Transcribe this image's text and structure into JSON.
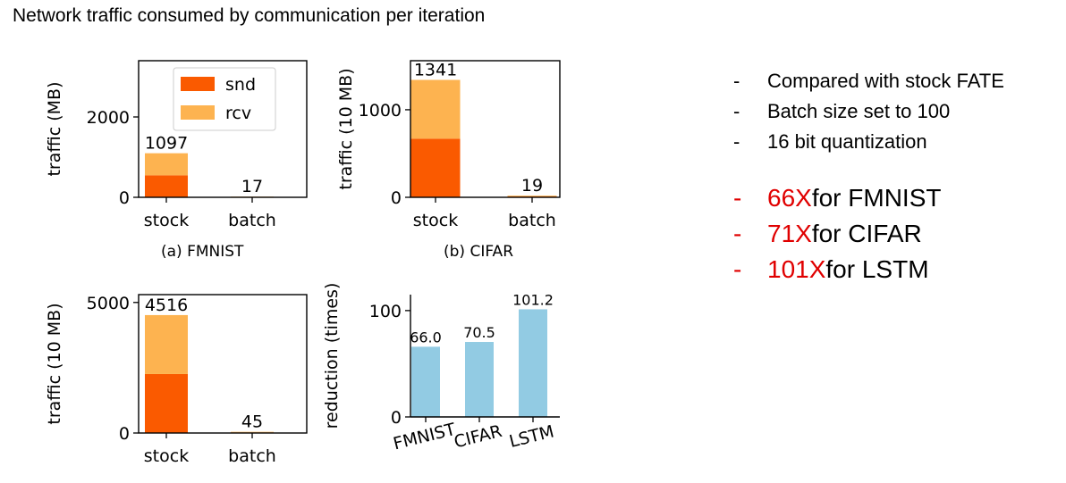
{
  "title": "Network traffic consumed by communication per iteration",
  "colors": {
    "snd": "#fa5a00",
    "rcv": "#fdb350",
    "reduction": "#92cbe3",
    "highlight": "#e00000"
  },
  "bullets": {
    "small": [
      {
        "dash": "-",
        "text": "Compared with stock FATE"
      },
      {
        "dash": "-",
        "text": "Batch size set to 100"
      },
      {
        "dash": "-",
        "text": "16 bit quantization"
      }
    ],
    "big": [
      {
        "dash": "-",
        "highlight": "66X",
        "text": " for FMNIST"
      },
      {
        "dash": "-",
        "highlight": "71X",
        "text": " for CIFAR"
      },
      {
        "dash": "-",
        "highlight": "101X",
        "text": " for LSTM"
      }
    ]
  },
  "chart_data": [
    {
      "type": "bar",
      "stacked": true,
      "caption": "(a) FMNIST",
      "ylabel": "traffic (MB)",
      "ylim": [
        0,
        3400
      ],
      "yticks": [
        0,
        2000
      ],
      "categories": [
        "stock",
        "batch"
      ],
      "series": [
        {
          "name": "snd",
          "values": [
            548,
            8.5
          ]
        },
        {
          "name": "rcv",
          "values": [
            549,
            8.5
          ]
        }
      ],
      "data_labels": [
        "1097",
        "17"
      ],
      "legend": {
        "position": "top-right",
        "entries": [
          "snd",
          "rcv"
        ]
      }
    },
    {
      "type": "bar",
      "stacked": true,
      "caption": "(b) CIFAR",
      "ylabel": "traffic (10 MB)",
      "ylim": [
        0,
        1560
      ],
      "yticks": [
        0,
        1000
      ],
      "categories": [
        "stock",
        "batch"
      ],
      "series": [
        {
          "name": "snd",
          "values": [
            670,
            9.5
          ]
        },
        {
          "name": "rcv",
          "values": [
            671,
            9.5
          ]
        }
      ],
      "data_labels": [
        "1341",
        "19"
      ]
    },
    {
      "type": "bar",
      "stacked": true,
      "caption": "",
      "ylabel": "traffic (10 MB)",
      "ylim": [
        0,
        5300
      ],
      "yticks": [
        0,
        5000
      ],
      "categories": [
        "stock",
        "batch"
      ],
      "series": [
        {
          "name": "snd",
          "values": [
            2258,
            22.5
          ]
        },
        {
          "name": "rcv",
          "values": [
            2258,
            22.5
          ]
        }
      ],
      "data_labels": [
        "4516",
        "45"
      ]
    },
    {
      "type": "bar",
      "caption": "",
      "ylabel": "reduction (times)",
      "ylim": [
        0,
        115
      ],
      "yticks": [
        0,
        100
      ],
      "categories": [
        "FMNIST",
        "CIFAR",
        "LSTM"
      ],
      "values": [
        66.0,
        70.5,
        101.2
      ],
      "data_labels": [
        "66.0",
        "70.5",
        "101.2"
      ]
    }
  ]
}
